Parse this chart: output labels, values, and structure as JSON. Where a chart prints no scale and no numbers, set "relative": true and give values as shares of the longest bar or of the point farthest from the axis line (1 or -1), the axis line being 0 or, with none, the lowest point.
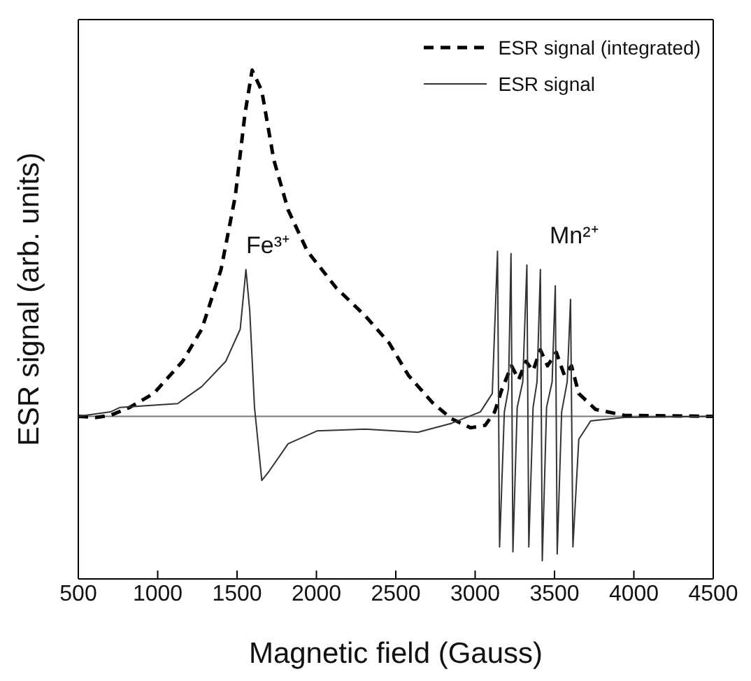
{
  "chart_data": {
    "type": "line",
    "relative": true,
    "xlabel": "Magnetic field (Gauss)",
    "ylabel": "ESR signal (arb. units)",
    "xlim": [
      500,
      4500
    ],
    "xticks": [
      500,
      1000,
      1500,
      2000,
      2500,
      3000,
      3500,
      4000,
      4500
    ],
    "legend": "top right",
    "grid": false,
    "marker": "none",
    "ref_lines": [
      {
        "axis": "y",
        "value": 0,
        "color": "#777777",
        "line_style": "solid"
      }
    ],
    "annotations": [
      "Fe³⁺",
      "Mn²⁺"
    ],
    "series": [
      {
        "name": "ESR signal (integrated)",
        "color": "#000000",
        "line_style": "dashed",
        "x": [
          500,
          612,
          703,
          824,
          975,
          1157,
          1278,
          1399,
          1489,
          1550,
          1595,
          1656,
          1731,
          1822,
          1943,
          2125,
          2306,
          2458,
          2579,
          2730,
          2851,
          2972,
          3063,
          3123,
          3169,
          3229,
          3274,
          3320,
          3365,
          3411,
          3456,
          3511,
          3562,
          3607,
          3653,
          3759,
          3940,
          4500
        ],
        "values": [
          0,
          -0.003,
          0.003,
          0.026,
          0.066,
          0.159,
          0.252,
          0.424,
          0.636,
          0.874,
          1.0,
          0.94,
          0.742,
          0.596,
          0.477,
          0.371,
          0.291,
          0.212,
          0.119,
          0.04,
          -0.007,
          -0.033,
          -0.026,
          0.013,
          0.079,
          0.146,
          0.106,
          0.159,
          0.132,
          0.192,
          0.146,
          0.185,
          0.119,
          0.146,
          0.066,
          0.02,
          0.003,
          0
        ]
      },
      {
        "name": "ESR signal",
        "color": "#333333",
        "line_style": "solid",
        "x": [
          500,
          703,
          763,
          1126,
          1278,
          1429,
          1520,
          1556,
          1580,
          1610,
          1656,
          1701,
          1822,
          2004,
          2306,
          2639,
          2851,
          3033,
          3108,
          3141,
          3154,
          3184,
          3210,
          3226,
          3238,
          3265,
          3300,
          3326,
          3338,
          3365,
          3390,
          3411,
          3423,
          3450,
          3485,
          3505,
          3517,
          3545,
          3580,
          3601,
          3616,
          3653,
          3728,
          3940,
          4500
        ],
        "values": [
          0,
          0.013,
          0.026,
          0.037,
          0.086,
          0.159,
          0.252,
          0.424,
          0.305,
          0.026,
          -0.185,
          -0.159,
          -0.079,
          -0.042,
          -0.037,
          -0.046,
          -0.02,
          0.013,
          0.066,
          0.477,
          -0.377,
          0.013,
          0.08,
          0.47,
          -0.391,
          0.026,
          0.1,
          0.437,
          -0.377,
          0.026,
          0.1,
          0.424,
          -0.417,
          0.026,
          0.1,
          0.377,
          -0.397,
          0.013,
          0.1,
          0.338,
          -0.377,
          -0.066,
          -0.013,
          -0.003,
          0
        ]
      }
    ]
  }
}
